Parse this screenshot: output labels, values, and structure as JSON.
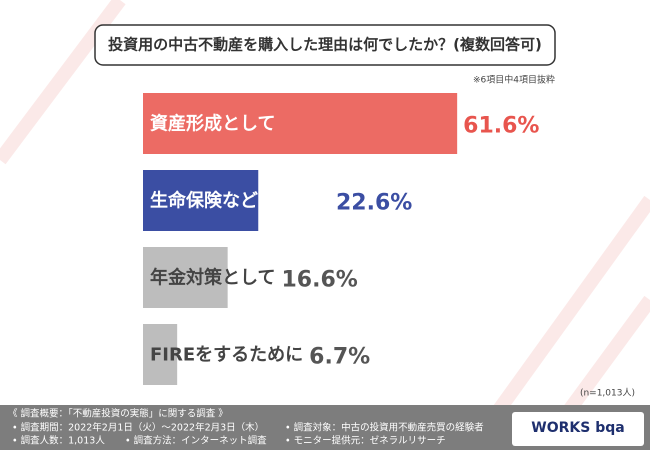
{
  "chart_data": {
    "type": "bar",
    "title": "投資用の中古不動産を購入した理由は何でしたか？(複数回答可)",
    "note": "※6項目中4項目抜粋",
    "sample": "(n=1,013人)",
    "categories": [
      "資産形成として",
      "生命保険などの代わり",
      "年金対策として",
      "FIREをするために"
    ],
    "values": [
      61.6,
      22.6,
      16.6,
      6.7
    ],
    "value_labels": [
      "61.6%",
      "22.6%",
      "16.6%",
      "6.7%"
    ],
    "colors": [
      "#ec6b64",
      "#3b4ea3",
      "#bdbdbd",
      "#bdbdbd"
    ],
    "category_label_colors": [
      "#ffffff",
      "#ffffff",
      "#444444",
      "#444444"
    ],
    "value_label_colors": [
      "#e8554e",
      "#3b4ea3",
      "#555555",
      "#555555"
    ]
  },
  "footer": {
    "heading": "《 調査概要：「不動産投資の実態」に関する調査 》",
    "items": [
      "• 調査期間：2022年2月1日（火）～2022年2月3日（木）",
      "• 調査対象：中古の投資用不動産売買の経験者",
      "• 調査人数：1,013人",
      "• 調査方法：インターネット調査",
      "• モニター提供元：ゼネラルリサーチ"
    ],
    "logo": "WORKS bqa"
  }
}
